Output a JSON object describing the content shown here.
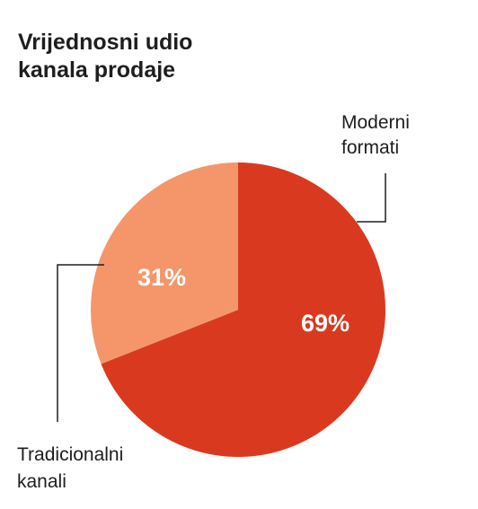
{
  "title_lines": [
    "Vrijednosni udio",
    "kanala prodaje"
  ],
  "chart_data": {
    "type": "pie",
    "title": "Vrijednosni udio kanala prodaje",
    "slices": [
      {
        "name": "Moderni formati",
        "label_lines": [
          "Moderni",
          "formati"
        ],
        "value": 69,
        "value_label": "69%",
        "color": "#d93a1f"
      },
      {
        "name": "Tradicionalni kanali",
        "label_lines": [
          "Tradicionalni",
          "kanali"
        ],
        "value": 31,
        "value_label": "31%",
        "color": "#f5966a"
      }
    ],
    "start": "12 o'clock",
    "direction": "clockwise"
  }
}
